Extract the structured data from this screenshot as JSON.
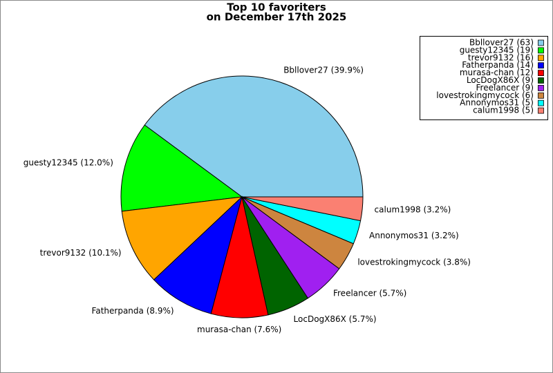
{
  "chart_data": {
    "type": "pie",
    "title": "Top 10 favoriters",
    "subtitle": "on December 17th 2025",
    "values": [
      63,
      19,
      16,
      14,
      12,
      9,
      9,
      6,
      5,
      5
    ],
    "slice_labels": [
      "Bbllover27 (39.9%)",
      "guesty12345 (12.0%)",
      "trevor9132 (10.1%)",
      "Fatherpanda (8.9%)",
      "murasa-chan (7.6%)",
      "LocDogX86X (5.7%)",
      "Freelancer (5.7%)",
      "lovestrokingmycock (3.8%)",
      "Annonymos31 (3.2%)",
      "calum1998 (3.2%)"
    ],
    "legend_labels": [
      "Bbllover27 (63)",
      "guesty12345 (19)",
      "trevor9132 (16)",
      "Fatherpanda (14)",
      "murasa-chan (12)",
      "LocDogX86X (9)",
      "Freelancer (9)",
      "lovestrokingmycock (6)",
      "Annonymos31 (5)",
      "calum1998 (5)"
    ],
    "colors": [
      "#87ceeb",
      "#00ff00",
      "#ffa500",
      "#0000ff",
      "#ff0000",
      "#006400",
      "#a020f0",
      "#cd853f",
      "#00ffff",
      "#fa8072"
    ],
    "legend": "upper right"
  }
}
